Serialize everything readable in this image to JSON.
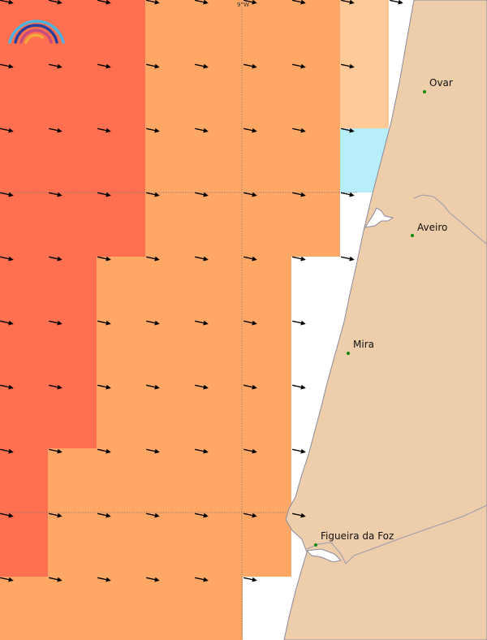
{
  "map": {
    "longitude_label": "9°W",
    "legend_colors": {
      "dark_red": "#FF7050",
      "orange": "#FFA865",
      "light_orange": "#FFCA98",
      "light_blue": "#B8EEFB",
      "land": "#EECDAB",
      "coast_line": "#9A9AAE"
    },
    "cities": [
      {
        "name": "Ovar"
      },
      {
        "name": "Aveiro"
      },
      {
        "name": "Mira"
      },
      {
        "name": "Figueira da Foz"
      }
    ],
    "icons": {
      "logo": "rainbow-logo-icon",
      "arrow": "wind-arrow-icon"
    }
  }
}
